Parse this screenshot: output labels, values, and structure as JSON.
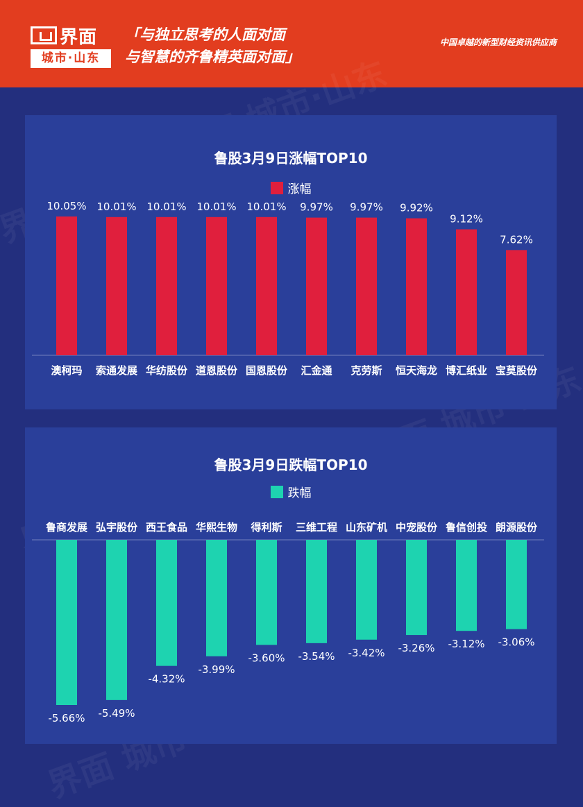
{
  "header": {
    "brand": "界面",
    "city": "城市·山东",
    "slogan_line1": "「与独立思考的人面对面",
    "slogan_line2": "与智慧的齐鲁精英面对面」",
    "tagline": "中国卓越的新型财经资讯供应商"
  },
  "watermark": "界面 城市·山东",
  "colors": {
    "header": "#e23d1f",
    "background": "#232f7e",
    "panel": "#2a3f9a",
    "gain_bar": "#e01f3d",
    "loss_bar": "#1ed3b0"
  },
  "chart_data": [
    {
      "type": "bar",
      "title": "鲁股3月9日涨幅TOP10",
      "legend": "涨幅",
      "legend_position": "top-center",
      "categories": [
        "澳柯玛",
        "索通发展",
        "华纺股份",
        "道恩股份",
        "国恩股份",
        "汇金通",
        "克劳斯",
        "恒天海龙",
        "博汇纸业",
        "宝莫股份"
      ],
      "values": [
        10.05,
        10.01,
        10.01,
        10.01,
        10.01,
        9.97,
        9.97,
        9.92,
        9.12,
        7.62
      ],
      "labels": [
        "10.05%",
        "10.01%",
        "10.01%",
        "10.01%",
        "10.01%",
        "9.97%",
        "9.97%",
        "9.92%",
        "9.12%",
        "7.62%"
      ],
      "ylim": [
        0,
        10.05
      ],
      "grid": false
    },
    {
      "type": "bar",
      "title": "鲁股3月9日跌幅TOP10",
      "legend": "跌幅",
      "legend_position": "top-center",
      "categories": [
        "鲁商发展",
        "弘宇股份",
        "西王食品",
        "华熙生物",
        "得利斯",
        "三维工程",
        "山东矿机",
        "中宠股份",
        "鲁信创投",
        "朗源股份"
      ],
      "values": [
        -5.66,
        -5.49,
        -4.32,
        -3.99,
        -3.6,
        -3.54,
        -3.42,
        -3.26,
        -3.12,
        -3.06
      ],
      "labels": [
        "-5.66%",
        "-5.49%",
        "-4.32%",
        "-3.99%",
        "-3.60%",
        "-3.54%",
        "-3.42%",
        "-3.26%",
        "-3.12%",
        "-3.06%"
      ],
      "ylim": [
        -5.66,
        0
      ],
      "grid": false
    }
  ]
}
